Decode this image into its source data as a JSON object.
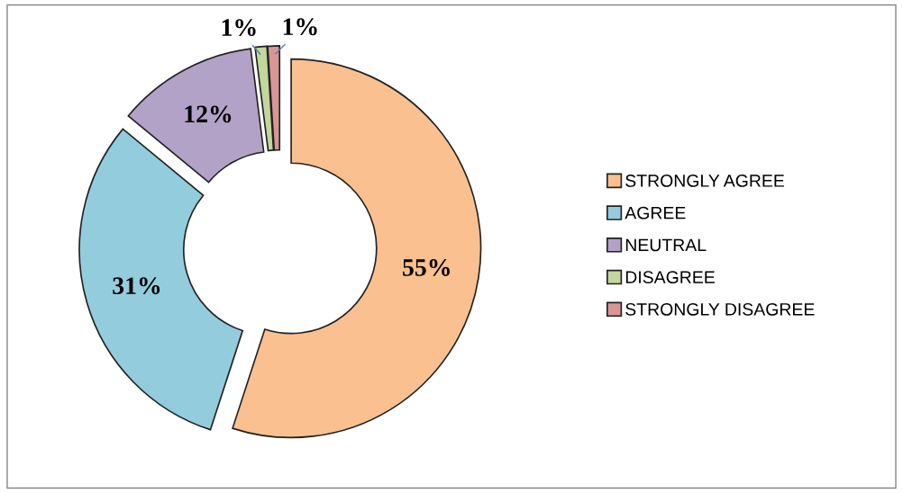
{
  "chart_data": {
    "type": "donut",
    "categories": [
      "STRONGLY AGREE",
      "AGREE",
      "NEUTRAL",
      "DISAGREE",
      "STRONGLY DISAGREE"
    ],
    "values": [
      55,
      31,
      12,
      1,
      1
    ],
    "colors": [
      "#fac090",
      "#93cddd",
      "#b3a2c7",
      "#c3d69b",
      "#d99694"
    ],
    "value_labels": [
      "55%",
      "31%",
      "12%",
      "1%",
      "1%"
    ],
    "legend": "right"
  }
}
